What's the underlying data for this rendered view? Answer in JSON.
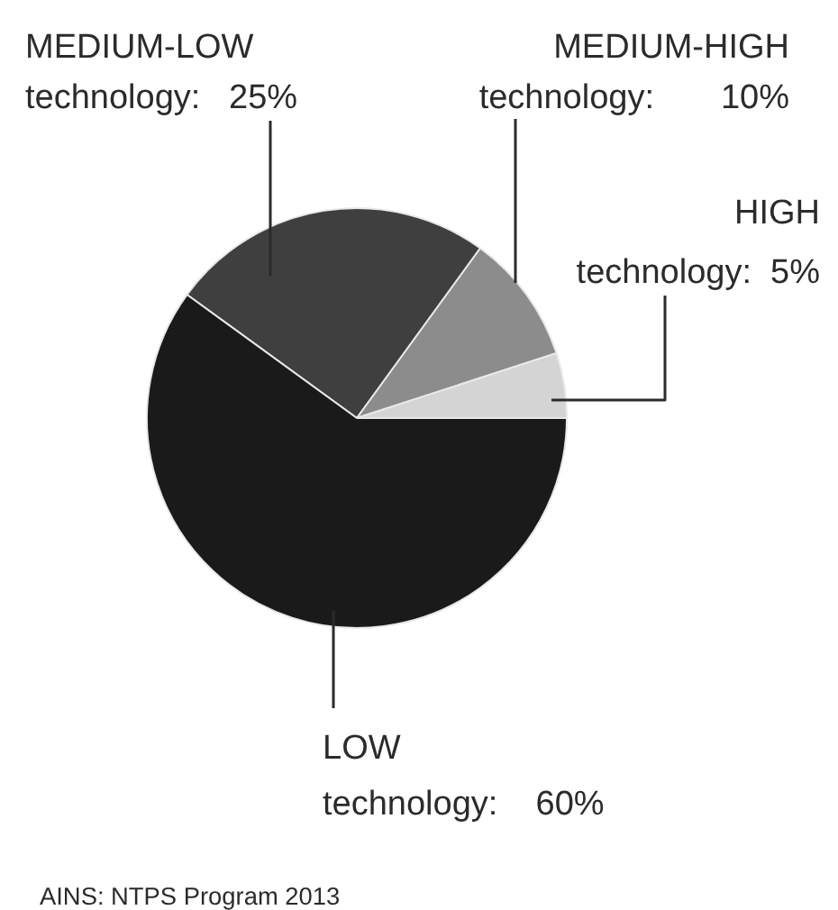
{
  "chart_data": {
    "type": "pie",
    "categories": [
      "MEDIUM-LOW technology",
      "MEDIUM-HIGH technology",
      "HIGH technology",
      "LOW technology"
    ],
    "values": [
      25,
      10,
      5,
      60
    ],
    "colors": [
      "#3f3f3f",
      "#8c8c8c",
      "#d4d4d4",
      "#1a1a1a"
    ],
    "value_labels": [
      "25%",
      "10%",
      "5%",
      "60%"
    ],
    "annotations": [
      "AINS: NTPS Program 2013"
    ]
  }
}
